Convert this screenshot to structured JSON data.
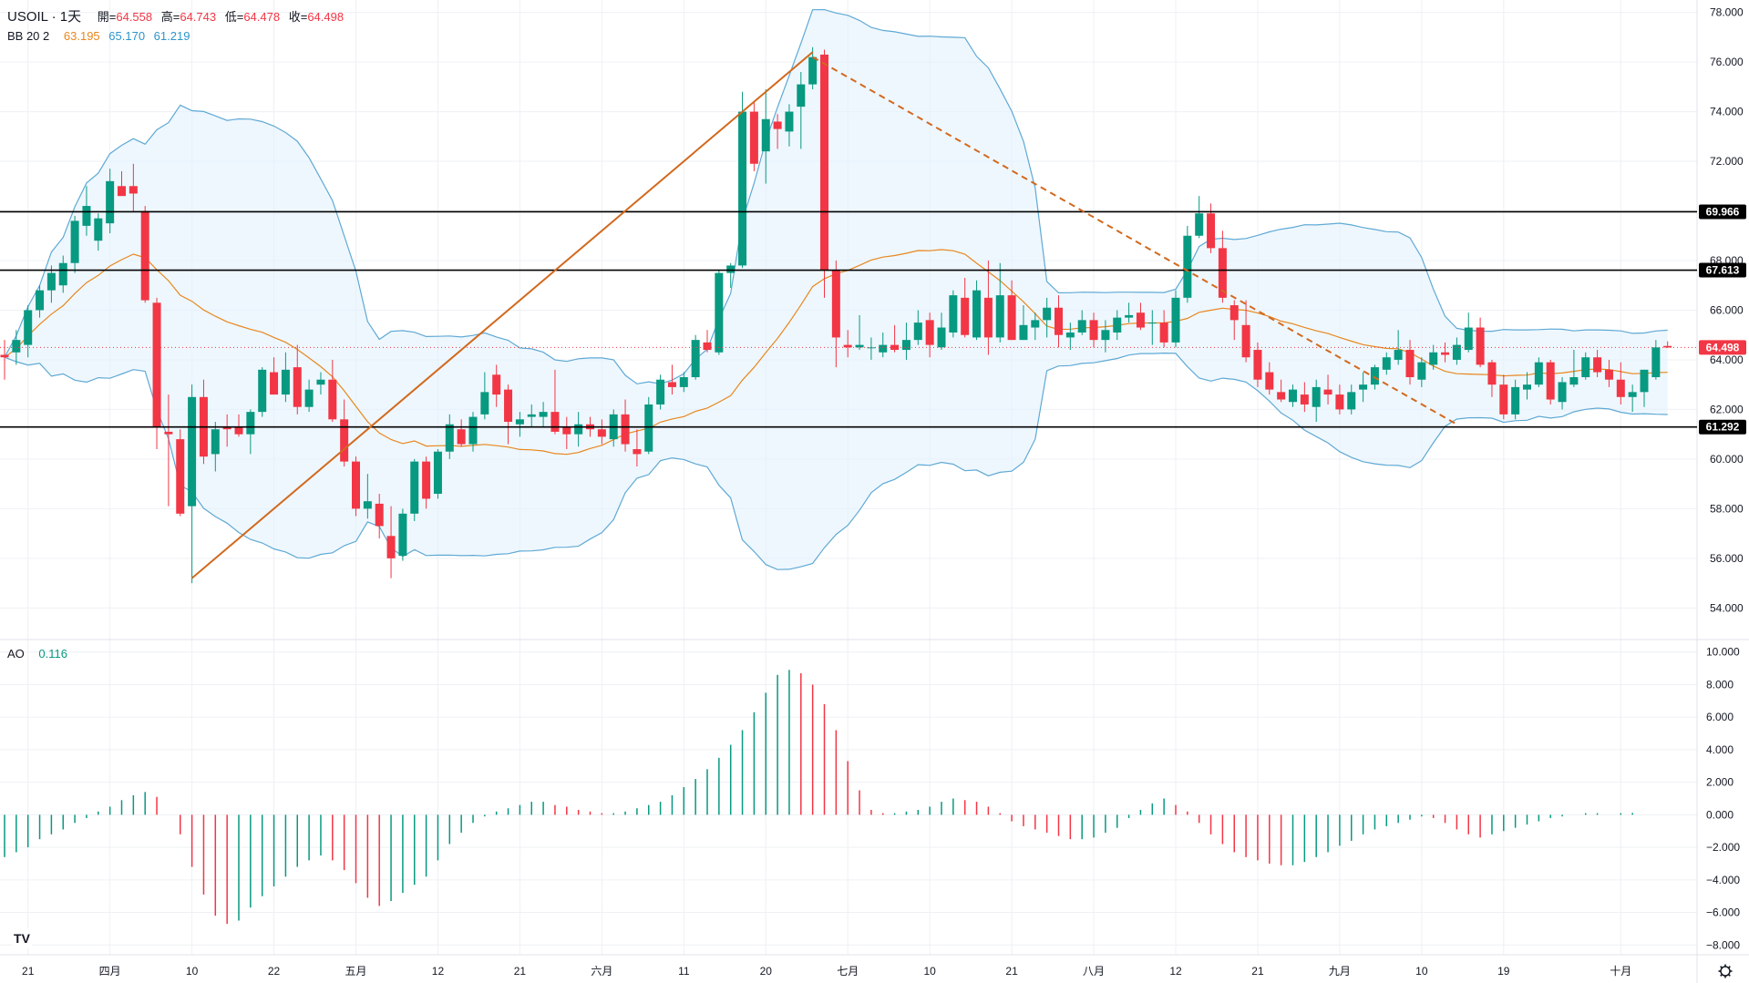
{
  "legend": {
    "symbol": "USOIL · 1天",
    "ohlc": [
      {
        "label": "開=",
        "value": "64.558"
      },
      {
        "label": "高=",
        "value": "64.743"
      },
      {
        "label": "低=",
        "value": "64.478"
      },
      {
        "label": "收=",
        "value": "64.498"
      }
    ],
    "bb_label": "BB 20 2",
    "bb_values": [
      "63.195",
      "65.170",
      "61.219"
    ],
    "ao_label": "AO",
    "ao_value": "0.116"
  },
  "colors": {
    "up": "#089981",
    "down": "#f23645",
    "bb_basis": "#e8871e",
    "bb_band": "#5fa9d4",
    "bb_fill": "#e3f2fd",
    "trend": "#d2691e",
    "hline": "#000000",
    "grid": "#eef0f4"
  },
  "chart_data": [
    {
      "type": "candlestick",
      "title": "USOIL · 1天",
      "ylim": [
        52.8,
        78.5
      ],
      "y_ticks": [
        54,
        56,
        58,
        60,
        62,
        64,
        66,
        68,
        70,
        72,
        74,
        76,
        78
      ],
      "y_tick_labels": [
        "54.000",
        "56.000",
        "58.000",
        "60.000",
        "62.000",
        "64.000",
        "66.000",
        "68.000",
        "70.000",
        "72.000",
        "74.000",
        "76.000",
        "78.000"
      ],
      "x_ticks": [
        {
          "i": 2,
          "label": "21"
        },
        {
          "i": 9,
          "label": "四月"
        },
        {
          "i": 16,
          "label": "10"
        },
        {
          "i": 23,
          "label": "22"
        },
        {
          "i": 30,
          "label": "五月"
        },
        {
          "i": 37,
          "label": "12"
        },
        {
          "i": 44,
          "label": "21"
        },
        {
          "i": 51,
          "label": "六月"
        },
        {
          "i": 58,
          "label": "11"
        },
        {
          "i": 65,
          "label": "20"
        },
        {
          "i": 72,
          "label": "七月"
        },
        {
          "i": 79,
          "label": "10"
        },
        {
          "i": 86,
          "label": "21"
        },
        {
          "i": 93,
          "label": "八月"
        },
        {
          "i": 100,
          "label": "12"
        },
        {
          "i": 107,
          "label": "21"
        },
        {
          "i": 114,
          "label": "九月"
        },
        {
          "i": 121,
          "label": "10"
        },
        {
          "i": 128,
          "label": "19"
        },
        {
          "i": 138,
          "label": "十月"
        }
      ],
      "horizontal_levels": [
        {
          "value": 69.966,
          "label": "69.966"
        },
        {
          "value": 67.613,
          "label": "67.613"
        },
        {
          "value": 61.292,
          "label": "61.292"
        }
      ],
      "last_price": {
        "value": 64.498,
        "label": "64.498"
      },
      "trendlines": [
        {
          "style": "solid",
          "from": [
            16,
            55.2
          ],
          "to": [
            69,
            76.4
          ]
        },
        {
          "style": "dashed",
          "from": [
            69,
            76.2
          ],
          "to": [
            124,
            61.4
          ]
        }
      ],
      "candles": [
        [
          64.2,
          64.8,
          63.2,
          64.1
        ],
        [
          64.3,
          65.2,
          63.8,
          64.8
        ],
        [
          64.6,
          66.2,
          64.1,
          66.0
        ],
        [
          66.0,
          67.0,
          65.7,
          66.8
        ],
        [
          66.8,
          67.8,
          66.3,
          67.5
        ],
        [
          67.0,
          68.2,
          66.7,
          67.9
        ],
        [
          67.9,
          69.8,
          67.5,
          69.6
        ],
        [
          69.4,
          71.0,
          69.0,
          70.2
        ],
        [
          68.8,
          69.9,
          68.4,
          69.7
        ],
        [
          69.5,
          71.7,
          69.1,
          71.2
        ],
        [
          71.0,
          71.6,
          70.7,
          70.6
        ],
        [
          71.0,
          71.9,
          70.0,
          70.7
        ],
        [
          70.0,
          70.2,
          66.3,
          66.4
        ],
        [
          66.3,
          66.5,
          60.4,
          61.3
        ],
        [
          61.1,
          62.6,
          58.1,
          61.0
        ],
        [
          60.8,
          61.2,
          57.7,
          57.8
        ],
        [
          58.1,
          63.0,
          55.0,
          62.5
        ],
        [
          62.5,
          63.2,
          59.8,
          60.1
        ],
        [
          60.2,
          61.5,
          59.5,
          61.2
        ],
        [
          61.3,
          61.8,
          60.5,
          61.2
        ],
        [
          61.3,
          61.8,
          60.9,
          61.0
        ],
        [
          61.0,
          62.0,
          60.2,
          61.9
        ],
        [
          61.9,
          63.7,
          61.7,
          63.6
        ],
        [
          63.5,
          64.1,
          62.6,
          62.6
        ],
        [
          62.6,
          64.3,
          62.3,
          63.6
        ],
        [
          63.7,
          64.6,
          61.8,
          62.1
        ],
        [
          62.1,
          63.2,
          61.9,
          62.8
        ],
        [
          63.0,
          63.5,
          62.6,
          63.2
        ],
        [
          63.2,
          64.0,
          61.5,
          61.6
        ],
        [
          61.6,
          62.4,
          59.7,
          59.9
        ],
        [
          59.9,
          60.1,
          57.7,
          58.0
        ],
        [
          58.0,
          59.4,
          57.6,
          58.3
        ],
        [
          58.2,
          58.6,
          56.8,
          57.3
        ],
        [
          56.9,
          58.1,
          55.2,
          56.0
        ],
        [
          56.1,
          58.0,
          55.9,
          57.8
        ],
        [
          57.8,
          60.0,
          57.5,
          59.9
        ],
        [
          59.9,
          60.1,
          58.0,
          58.4
        ],
        [
          58.6,
          60.4,
          58.4,
          60.3
        ],
        [
          60.3,
          61.8,
          60.0,
          61.4
        ],
        [
          61.2,
          61.6,
          60.5,
          60.6
        ],
        [
          60.6,
          61.9,
          60.3,
          61.7
        ],
        [
          61.8,
          63.5,
          61.6,
          62.7
        ],
        [
          63.4,
          63.8,
          62.1,
          62.6
        ],
        [
          62.8,
          63.0,
          60.6,
          61.5
        ],
        [
          61.4,
          61.9,
          60.9,
          61.6
        ],
        [
          61.7,
          62.2,
          61.3,
          61.8
        ],
        [
          61.7,
          62.3,
          61.3,
          61.9
        ],
        [
          61.9,
          63.6,
          61.0,
          61.1
        ],
        [
          61.3,
          61.7,
          60.4,
          61.0
        ],
        [
          61.0,
          61.9,
          60.5,
          61.4
        ],
        [
          61.4,
          61.7,
          60.9,
          61.2
        ],
        [
          61.2,
          61.6,
          60.6,
          60.9
        ],
        [
          60.8,
          62.0,
          60.5,
          61.8
        ],
        [
          61.8,
          62.4,
          60.3,
          60.6
        ],
        [
          60.4,
          61.2,
          59.7,
          60.2
        ],
        [
          60.3,
          62.5,
          60.2,
          62.2
        ],
        [
          62.2,
          63.4,
          62.0,
          63.2
        ],
        [
          63.1,
          63.8,
          62.6,
          62.9
        ],
        [
          62.9,
          63.5,
          62.7,
          63.3
        ],
        [
          63.3,
          65.0,
          63.2,
          64.8
        ],
        [
          64.7,
          65.2,
          64.3,
          64.4
        ],
        [
          64.3,
          67.6,
          64.2,
          67.5
        ],
        [
          67.5,
          67.9,
          66.9,
          67.8
        ],
        [
          67.8,
          74.8,
          67.7,
          74.0
        ],
        [
          74.0,
          74.4,
          71.6,
          71.9
        ],
        [
          72.4,
          74.9,
          71.1,
          73.7
        ],
        [
          73.6,
          73.9,
          72.5,
          73.3
        ],
        [
          73.2,
          74.3,
          72.6,
          74.0
        ],
        [
          74.2,
          75.6,
          72.5,
          75.1
        ],
        [
          75.1,
          76.6,
          74.9,
          76.2
        ],
        [
          76.3,
          76.5,
          66.5,
          67.6
        ],
        [
          67.6,
          68.0,
          63.7,
          64.9
        ],
        [
          64.6,
          65.2,
          64.1,
          64.5
        ],
        [
          64.5,
          65.8,
          64.4,
          64.6
        ],
        [
          64.5,
          64.9,
          64.0,
          64.5
        ],
        [
          64.3,
          65.1,
          64.1,
          64.6
        ],
        [
          64.6,
          65.4,
          64.3,
          64.4
        ],
        [
          64.4,
          65.5,
          64.0,
          64.8
        ],
        [
          64.8,
          66.0,
          64.6,
          65.5
        ],
        [
          65.6,
          65.9,
          64.1,
          64.6
        ],
        [
          64.5,
          65.9,
          64.4,
          65.3
        ],
        [
          65.1,
          66.8,
          64.9,
          66.6
        ],
        [
          66.5,
          67.3,
          64.9,
          65.0
        ],
        [
          64.9,
          67.2,
          64.8,
          66.8
        ],
        [
          66.5,
          68.0,
          64.2,
          64.9
        ],
        [
          64.9,
          67.9,
          64.7,
          66.6
        ],
        [
          66.6,
          67.2,
          64.8,
          64.8
        ],
        [
          64.8,
          66.2,
          64.8,
          65.4
        ],
        [
          65.3,
          65.9,
          64.8,
          65.6
        ],
        [
          65.6,
          66.5,
          64.9,
          66.1
        ],
        [
          66.1,
          66.6,
          64.5,
          65.0
        ],
        [
          64.9,
          65.5,
          64.4,
          65.1
        ],
        [
          65.1,
          66.0,
          65.0,
          65.6
        ],
        [
          65.6,
          65.9,
          64.5,
          64.8
        ],
        [
          64.8,
          65.6,
          64.3,
          65.2
        ],
        [
          65.1,
          66.0,
          64.8,
          65.7
        ],
        [
          65.7,
          66.3,
          65.5,
          65.8
        ],
        [
          65.9,
          66.3,
          65.2,
          65.3
        ],
        [
          65.5,
          66.0,
          64.6,
          65.5
        ],
        [
          65.5,
          66.0,
          64.5,
          64.7
        ],
        [
          64.7,
          66.8,
          64.5,
          66.5
        ],
        [
          66.5,
          69.4,
          66.3,
          69.0
        ],
        [
          69.0,
          70.6,
          68.9,
          69.9
        ],
        [
          69.9,
          70.3,
          68.3,
          68.5
        ],
        [
          68.5,
          69.2,
          66.3,
          66.5
        ],
        [
          66.2,
          66.4,
          64.8,
          65.6
        ],
        [
          65.4,
          66.4,
          63.9,
          64.1
        ],
        [
          64.4,
          64.7,
          62.9,
          63.2
        ],
        [
          63.5,
          63.9,
          62.6,
          62.8
        ],
        [
          62.7,
          63.2,
          62.3,
          62.4
        ],
        [
          62.3,
          63.0,
          62.1,
          62.8
        ],
        [
          62.6,
          63.1,
          61.9,
          62.2
        ],
        [
          62.1,
          63.2,
          61.5,
          62.9
        ],
        [
          62.8,
          63.4,
          62.2,
          62.6
        ],
        [
          62.6,
          63.0,
          61.8,
          62.0
        ],
        [
          62.0,
          63.0,
          61.8,
          62.7
        ],
        [
          62.8,
          63.5,
          62.3,
          63.0
        ],
        [
          63.0,
          63.8,
          62.8,
          63.7
        ],
        [
          63.6,
          64.3,
          63.4,
          64.1
        ],
        [
          64.0,
          65.2,
          63.8,
          64.4
        ],
        [
          64.4,
          64.8,
          63.0,
          63.3
        ],
        [
          63.2,
          64.1,
          62.9,
          63.9
        ],
        [
          63.8,
          64.6,
          63.6,
          64.3
        ],
        [
          64.3,
          64.7,
          63.9,
          64.2
        ],
        [
          64.0,
          64.9,
          63.8,
          64.6
        ],
        [
          64.4,
          65.9,
          64.3,
          65.3
        ],
        [
          65.3,
          65.7,
          63.7,
          63.8
        ],
        [
          63.9,
          64.0,
          62.5,
          63.0
        ],
        [
          63.0,
          63.4,
          61.6,
          61.8
        ],
        [
          61.8,
          63.2,
          61.6,
          62.9
        ],
        [
          62.8,
          63.5,
          62.4,
          63.0
        ],
        [
          63.0,
          64.1,
          62.9,
          63.9
        ],
        [
          63.9,
          64.0,
          62.2,
          62.4
        ],
        [
          62.3,
          63.3,
          62.0,
          63.1
        ],
        [
          63.0,
          64.4,
          62.9,
          63.3
        ],
        [
          63.3,
          64.3,
          63.2,
          64.1
        ],
        [
          64.1,
          64.4,
          63.3,
          63.5
        ],
        [
          63.6,
          64.0,
          62.9,
          63.2
        ],
        [
          63.2,
          63.9,
          62.2,
          62.5
        ],
        [
          62.5,
          63.0,
          61.9,
          62.7
        ],
        [
          62.7,
          63.6,
          62.1,
          63.6
        ],
        [
          63.3,
          64.8,
          63.2,
          64.5
        ],
        [
          64.558,
          64.743,
          64.478,
          64.498
        ]
      ]
    },
    {
      "type": "bar",
      "title": "AO",
      "ylim": [
        -8.6,
        10.6
      ],
      "y_ticks": [
        -8,
        -6,
        -4,
        -2,
        0,
        2,
        4,
        6,
        8,
        10
      ],
      "y_tick_labels": [
        "−8.000",
        "−6.000",
        "−4.000",
        "−2.000",
        "0.000",
        "2.000",
        "4.000",
        "6.000",
        "8.000",
        "10.000"
      ],
      "last_value": 0.116,
      "values": [
        -2.6,
        -2.3,
        -2.0,
        -1.5,
        -1.2,
        -0.9,
        -0.5,
        -0.2,
        0.2,
        0.5,
        0.9,
        1.2,
        1.4,
        1.1,
        0.0,
        -1.2,
        -3.2,
        -4.9,
        -6.2,
        -6.7,
        -6.5,
        -5.7,
        -5.0,
        -4.4,
        -3.8,
        -3.2,
        -2.8,
        -2.5,
        -2.8,
        -3.4,
        -4.2,
        -5.1,
        -5.6,
        -5.3,
        -4.8,
        -4.3,
        -3.8,
        -2.8,
        -1.8,
        -1.1,
        -0.5,
        -0.1,
        0.2,
        0.4,
        0.6,
        0.8,
        0.8,
        0.6,
        0.5,
        0.3,
        0.2,
        0.1,
        0.1,
        0.2,
        0.4,
        0.6,
        0.8,
        1.2,
        1.7,
        2.2,
        2.8,
        3.5,
        4.3,
        5.2,
        6.3,
        7.5,
        8.6,
        8.9,
        8.7,
        8.0,
        6.8,
        5.2,
        3.3,
        1.5,
        0.3,
        0.1,
        0.1,
        0.2,
        0.3,
        0.5,
        0.8,
        1.0,
        0.9,
        0.8,
        0.5,
        0.1,
        -0.4,
        -0.7,
        -0.9,
        -1.1,
        -1.3,
        -1.5,
        -1.5,
        -1.4,
        -1.1,
        -0.8,
        -0.2,
        0.3,
        0.7,
        1.0,
        0.6,
        0.2,
        -0.5,
        -1.2,
        -1.8,
        -2.3,
        -2.6,
        -2.8,
        -3.0,
        -3.1,
        -3.1,
        -2.9,
        -2.6,
        -2.3,
        -1.9,
        -1.6,
        -1.2,
        -0.9,
        -0.7,
        -0.5,
        -0.3,
        -0.1,
        -0.2,
        -0.5,
        -0.9,
        -1.2,
        -1.4,
        -1.2,
        -1.0,
        -0.8,
        -0.6,
        -0.4,
        -0.2,
        -0.1,
        0.0,
        0.1,
        0.1,
        0.0,
        0.1,
        0.116
      ]
    }
  ]
}
